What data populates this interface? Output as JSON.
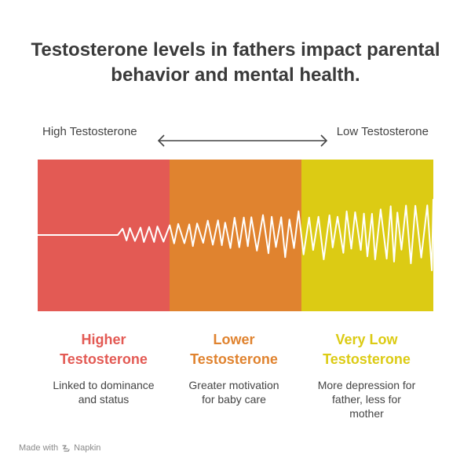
{
  "title": {
    "line1": "Testosterone levels in fathers impact parental",
    "line2": "behavior and mental health."
  },
  "scale": {
    "left_label": "High Testosterone",
    "right_label": "Low Testosterone",
    "arrow_icon": "double-headed-arrow-icon"
  },
  "colors": {
    "high": "#e35a54",
    "lower": "#e0832f",
    "very_low": "#dccb14",
    "wave": "#ffffff"
  },
  "columns": [
    {
      "title_line1": "Higher",
      "title_line2": "Testosterone",
      "desc_line1": "Linked to dominance",
      "desc_line2": "and status",
      "desc_line3": ""
    },
    {
      "title_line1": "Lower",
      "title_line2": "Testosterone",
      "desc_line1": "Greater motivation",
      "desc_line2": "for baby care",
      "desc_line3": ""
    },
    {
      "title_line1": "Very Low",
      "title_line2": "Testosterone",
      "desc_line1": "More depression for",
      "desc_line2": "father, less for",
      "desc_line3": "mother"
    }
  ],
  "footer": {
    "prefix": "Made with",
    "brand": "Napkin",
    "brand_icon": "napkin-logo-icon"
  }
}
